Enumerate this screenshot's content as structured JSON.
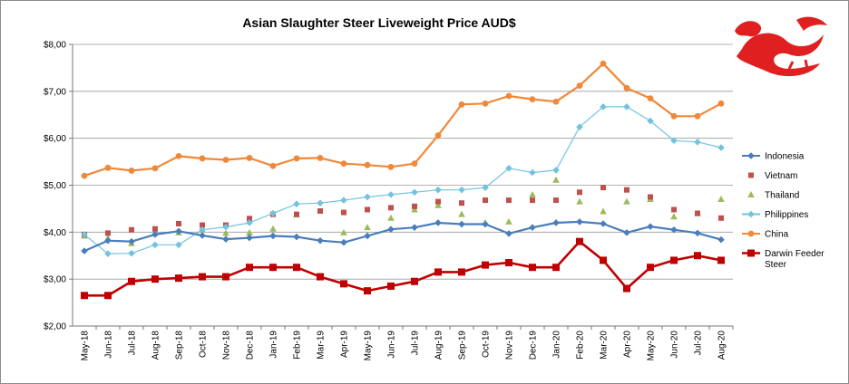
{
  "chart_data": {
    "type": "line",
    "title": "Asian Slaughter Steer Liveweight Price AUD$",
    "xlabel": "",
    "ylabel": "",
    "ylim": [
      2,
      8
    ],
    "y_ticks": [
      "$2,00",
      "$3,00",
      "$4,00",
      "$5,00",
      "$6,00",
      "$7,00",
      "$8,00"
    ],
    "grid": "horizontal",
    "legend_position": "right",
    "categories": [
      "May-18",
      "Jun-18",
      "Jul-18",
      "Aug-18",
      "Sep-18",
      "Oct-18",
      "Nov-18",
      "Dec-18",
      "Jan-19",
      "Feb-19",
      "Mar-19",
      "Apr-19",
      "May-19",
      "Jun-19",
      "Jul-19",
      "Aug-19",
      "Sep-19",
      "Oct-19",
      "Nov-19",
      "Dec-19",
      "Jan-20",
      "Feb-20",
      "Mar-20",
      "Apr-20",
      "May-20",
      "Jun-20",
      "Jul-20",
      "Aug-20"
    ],
    "series": [
      {
        "name": "Indonesia",
        "color": "#4a7ebb",
        "style": "line-diamond",
        "values": [
          3.6,
          3.82,
          3.8,
          3.95,
          4.02,
          3.93,
          3.85,
          3.88,
          3.92,
          3.9,
          3.82,
          3.78,
          3.92,
          4.06,
          4.1,
          4.2,
          4.17,
          4.17,
          3.97,
          4.1,
          4.2,
          4.22,
          4.18,
          3.99,
          4.12,
          4.05,
          3.98,
          3.84
        ]
      },
      {
        "name": "Vietnam",
        "color": "#c0504d",
        "style": "marker-square",
        "values": [
          3.95,
          3.98,
          4.05,
          4.07,
          4.18,
          4.15,
          4.15,
          4.29,
          4.38,
          4.38,
          4.45,
          4.42,
          4.48,
          4.52,
          4.55,
          4.65,
          4.62,
          4.68,
          4.68,
          4.68,
          4.68,
          4.85,
          4.95,
          4.9,
          4.75,
          4.48,
          4.4,
          4.3
        ]
      },
      {
        "name": "Thailand",
        "color": "#9bbb59",
        "style": "marker-triangle",
        "values": [
          3.92,
          3.87,
          3.76,
          3.99,
          3.99,
          4.05,
          3.98,
          3.99,
          4.07,
          4.37,
          null,
          3.99,
          4.1,
          4.3,
          4.48,
          4.57,
          4.38,
          4.2,
          4.22,
          4.8,
          5.11,
          4.65,
          4.44,
          4.65,
          4.7,
          4.33,
          4.4,
          4.7
        ]
      },
      {
        "name": "Philippines",
        "color": "#72c3de",
        "style": "line-diamond",
        "values": [
          3.95,
          3.54,
          3.55,
          3.73,
          3.73,
          4.05,
          4.11,
          4.2,
          4.4,
          4.6,
          4.62,
          4.68,
          4.75,
          4.8,
          4.85,
          4.9,
          4.9,
          4.95,
          5.36,
          5.27,
          5.32,
          6.24,
          6.67,
          6.67,
          6.37,
          5.95,
          5.92,
          5.8
        ]
      },
      {
        "name": "China",
        "color": "#f0883a",
        "style": "line-circle",
        "values": [
          5.2,
          5.37,
          5.31,
          5.36,
          5.62,
          5.57,
          5.54,
          5.58,
          5.41,
          5.57,
          5.58,
          5.46,
          5.43,
          5.39,
          5.46,
          6.06,
          6.72,
          6.74,
          6.9,
          6.83,
          6.78,
          7.12,
          7.59,
          7.07,
          6.85,
          6.47,
          6.47,
          6.74
        ]
      },
      {
        "name": "Darwin Feeder Steer",
        "name_lines": [
          "Darwin Feeder",
          "Steer"
        ],
        "color": "#c00000",
        "style": "line-square-thick",
        "values": [
          2.65,
          2.65,
          2.95,
          3.0,
          3.02,
          3.05,
          3.05,
          3.25,
          3.25,
          3.25,
          3.05,
          2.9,
          2.75,
          2.85,
          2.95,
          3.15,
          3.15,
          3.3,
          3.35,
          3.25,
          3.25,
          3.8,
          3.4,
          2.8,
          3.25,
          3.4,
          3.5,
          3.4
        ]
      }
    ]
  },
  "logo": {
    "name": "red-dragon-logo",
    "color": "#e02020"
  }
}
